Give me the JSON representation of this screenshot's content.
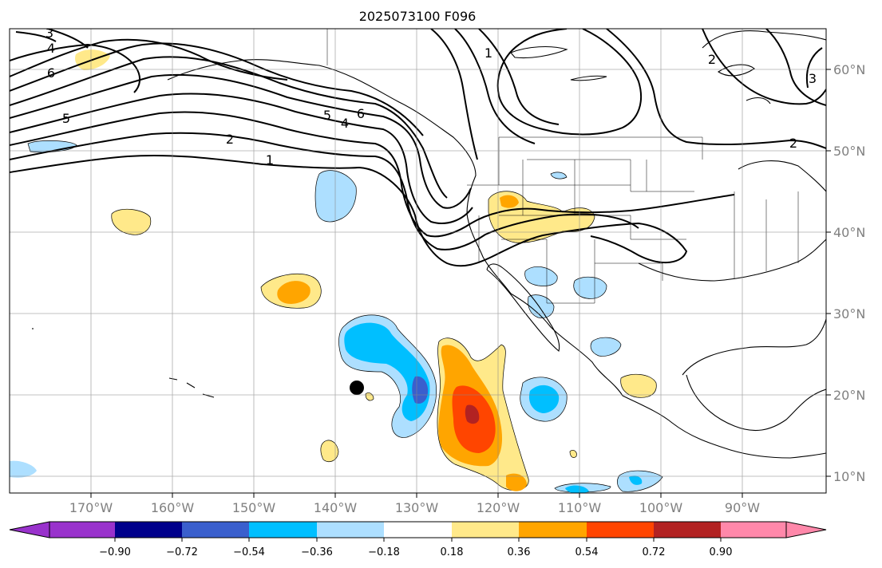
{
  "title": "2025073100 F096",
  "map": {
    "longitude_labels": [
      "170°W",
      "160°W",
      "150°W",
      "140°W",
      "130°W",
      "120°W",
      "110°W",
      "100°W",
      "90°W"
    ],
    "latitude_labels": [
      "60°N",
      "50°N",
      "40°N",
      "30°N",
      "20°N",
      "10°N"
    ],
    "contour_labels": [
      "3",
      "4",
      "6",
      "5",
      "2",
      "1",
      "5",
      "4",
      "6",
      "1",
      "2",
      "2",
      "3"
    ],
    "storm_marker": {
      "lon": -137.0,
      "lat": 21.0
    }
  },
  "colorbar": {
    "tick_labels": [
      "−0.90",
      "−0.72",
      "−0.54",
      "−0.36",
      "−0.18",
      "0.18",
      "0.36",
      "0.54",
      "0.72",
      "0.90"
    ],
    "colors": [
      "#9932CC",
      "#00008B",
      "#3A5FCD",
      "#00BFFF",
      "#ADDFFF",
      "#FFFFFF",
      "#FFE98A",
      "#FFA500",
      "#FF4500",
      "#B22222",
      "#FF88AA"
    ]
  }
}
